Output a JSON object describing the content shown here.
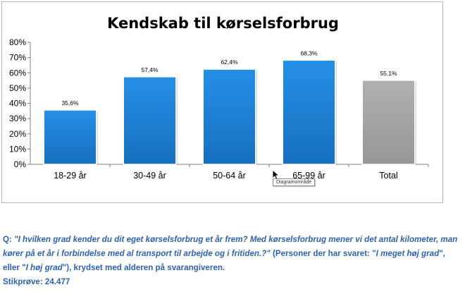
{
  "chart_data": {
    "type": "bar",
    "title": "Kendskab til kørselsforbrug",
    "categories": [
      "18-29 år",
      "30-49 år",
      "50-64 år",
      "65-99 år",
      "Total"
    ],
    "values": [
      35.6,
      57.4,
      62.4,
      68.3,
      55.1
    ],
    "value_labels": [
      "35,6%",
      "57,4%",
      "62,4%",
      "68,3%",
      "55,1%"
    ],
    "y_ticks": [
      "0%",
      "10%",
      "20%",
      "30%",
      "40%",
      "50%",
      "60%",
      "70%",
      "80%"
    ],
    "ylim": [
      0,
      80
    ],
    "colors": [
      "#1f84d8",
      "#1f84d8",
      "#1f84d8",
      "#1f84d8",
      "#a6a6a6"
    ],
    "grid": false,
    "legend": "none"
  },
  "tooltip": "Diagramområde",
  "note": {
    "q_prefix": "Q: ",
    "q_text": "\"I hvilken grad kender du dit eget kørselsforbrug et år frem? Med kørselsforbrug mener vi det antal kilometer, man kører på et år i forbindelse med al transport til arbejde og i fritiden.?\"",
    "answer_intro": " (Personer der har svaret: \"",
    "answer_1": "I meget høj grad",
    "answer_mid": "\", eller \"",
    "answer_2": "I høj grad",
    "answer_tail": "\"), krydset med alderen på svarangiveren.",
    "sample": "Stikprøve: 24.477"
  }
}
